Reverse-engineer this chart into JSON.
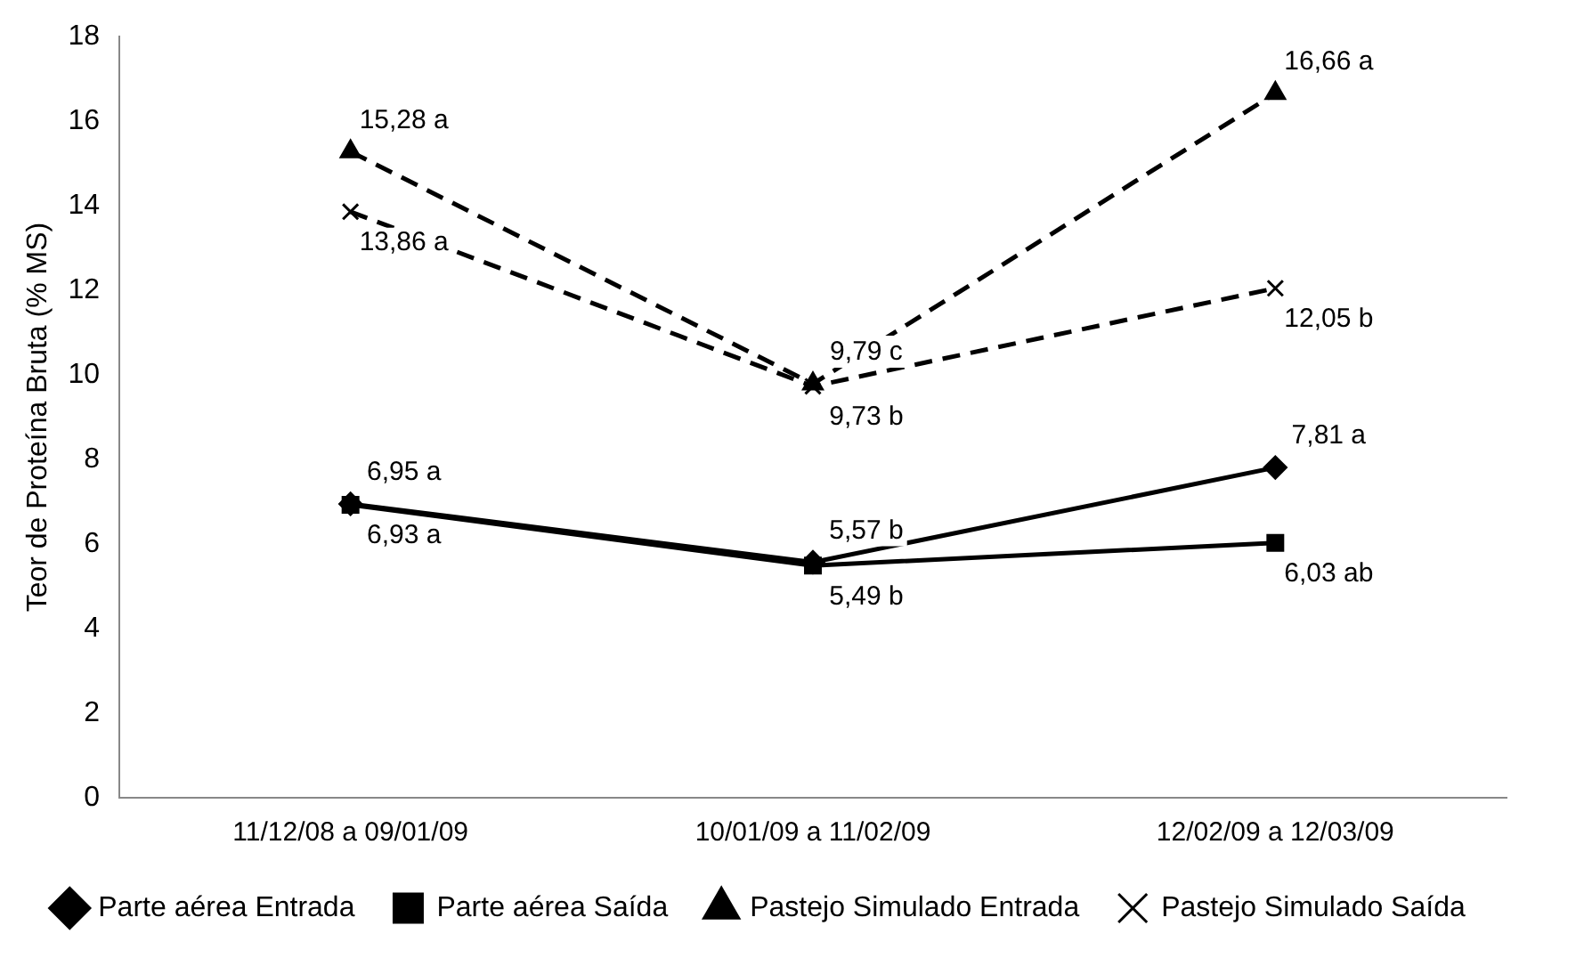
{
  "chart_data": {
    "type": "line",
    "ylabel": "Teor de Proteína Bruta (% MS)",
    "categories": [
      "11/12/08 a 09/01/09",
      "10/01/09 a 11/02/09",
      "12/02/09 a 12/03/09"
    ],
    "series": [
      {
        "name": "Parte aérea Entrada",
        "color": "#000000",
        "marker": "diamond",
        "line_style": "solid",
        "values": [
          6.95,
          5.57,
          7.81
        ],
        "value_labels": [
          "6,95 a",
          "5,57 b",
          "7,81 a"
        ]
      },
      {
        "name": "Parte aérea Saída",
        "color": "#000000",
        "marker": "square",
        "line_style": "solid",
        "values": [
          6.93,
          5.49,
          6.03
        ],
        "value_labels": [
          "6,93 a",
          "5,49 b",
          "6,03 ab"
        ]
      },
      {
        "name": "Pastejo Simulado Entrada",
        "color": "#000000",
        "marker": "triangle",
        "line_style": "dashed",
        "values": [
          15.28,
          9.79,
          16.66
        ],
        "value_labels": [
          "15,28 a",
          "9,79 c",
          "16,66 a"
        ]
      },
      {
        "name": "Pastejo Simulado Saída",
        "color": "#000000",
        "marker": "cross",
        "line_style": "dashed",
        "values": [
          13.86,
          9.73,
          12.05
        ],
        "value_labels": [
          "13,86 a",
          "9,73 b",
          "12,05 b"
        ]
      }
    ],
    "ylim": [
      0,
      18
    ],
    "yticks": [
      0,
      2,
      4,
      6,
      8,
      10,
      12,
      14,
      16,
      18
    ],
    "grid": false,
    "legend": "bottom"
  }
}
